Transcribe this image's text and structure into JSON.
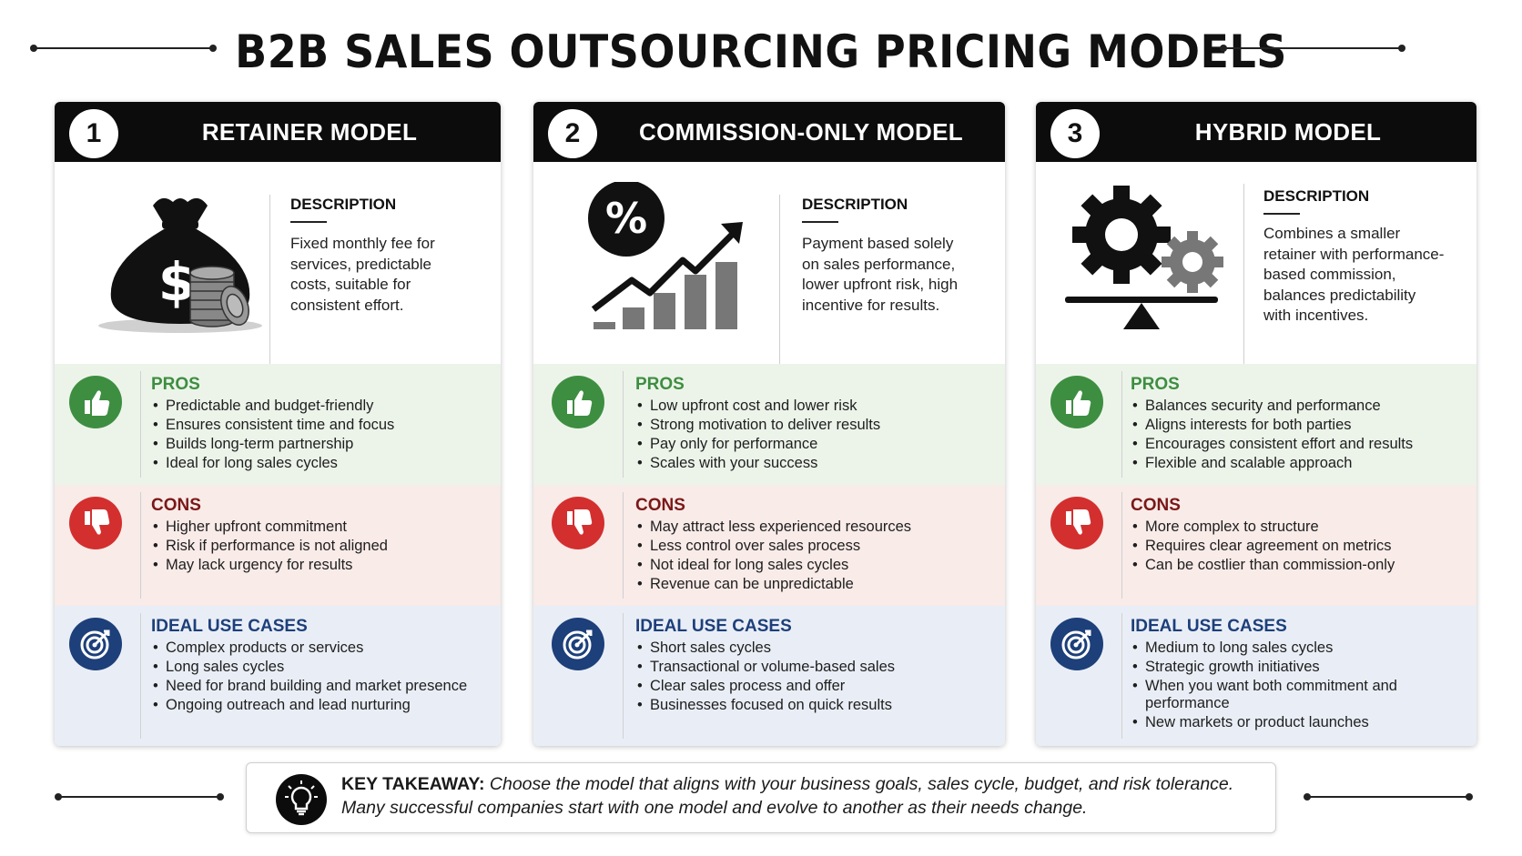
{
  "title": "B2B SALES OUTSOURCING PRICING MODELS",
  "cards": [
    {
      "number": "1",
      "title": "RETAINER MODEL",
      "icon": "money-bag-icon",
      "description_label": "DESCRIPTION",
      "description": [
        "Fixed monthly fee for",
        "services, predictable",
        "costs, suitable for",
        "consistent effort."
      ],
      "pros_label": "PROS",
      "pros": [
        "Predictable and budget-friendly",
        "Ensures consistent time and focus",
        "Builds long-term partnership",
        "Ideal for long sales cycles"
      ],
      "cons_label": "CONS",
      "cons": [
        "Higher upfront commitment",
        "Risk if performance is not aligned",
        "May lack urgency for results"
      ],
      "ideal_label": "IDEAL USE CASES",
      "ideal": [
        "Complex products or services",
        "Long sales cycles",
        "Need for brand building and market presence",
        "Ongoing outreach and lead nurturing"
      ]
    },
    {
      "number": "2",
      "title": "COMMISSION-ONLY MODEL",
      "icon": "percent-growth-chart-icon",
      "description_label": "DESCRIPTION",
      "description": [
        "Payment based solely",
        "on sales performance,",
        "lower upfront risk, high",
        "incentive for results."
      ],
      "pros_label": "PROS",
      "pros": [
        "Low upfront cost and lower risk",
        "Strong motivation to deliver results",
        "Pay only for performance",
        "Scales with your success"
      ],
      "cons_label": "CONS",
      "cons": [
        "May attract less experienced resources",
        "Less control over sales process",
        "Not ideal for long sales cycles",
        "Revenue can be unpredictable"
      ],
      "ideal_label": "IDEAL USE CASES",
      "ideal": [
        "Short sales cycles",
        "Transactional or volume-based sales",
        "Clear sales process and offer",
        "Businesses focused on quick results"
      ]
    },
    {
      "number": "3",
      "title": "HYBRID MODEL",
      "icon": "gears-balance-icon",
      "description_label": "DESCRIPTION",
      "description": [
        "Combines a smaller",
        "retainer with performance-",
        "based commission,",
        "balances predictability",
        "with incentives."
      ],
      "pros_label": "PROS",
      "pros": [
        "Balances security and performance",
        "Aligns interests for both parties",
        "Encourages consistent effort and results",
        "Flexible and scalable approach"
      ],
      "cons_label": "CONS",
      "cons": [
        "More complex to structure",
        "Requires clear agreement on metrics",
        "Can be costlier than commission-only"
      ],
      "ideal_label": "IDEAL USE CASES",
      "ideal": [
        "Medium to long sales cycles",
        "Strategic growth initiatives",
        "When you want both commitment and performance",
        "New markets or product launches"
      ]
    }
  ],
  "takeaway": {
    "label": "KEY TAKEAWAY:",
    "line1": "Choose the model that aligns with your business goals, sales cycle, budget, and risk tolerance.",
    "line2": "Many successful companies start with one model and evolve to another as their needs change.",
    "icon": "lightbulb-icon"
  },
  "colors": {
    "pros_green": "#3e8e41",
    "cons_red": "#d32f2f",
    "ideal_blue": "#1d3f7a",
    "header_black": "#0c0c0c"
  }
}
